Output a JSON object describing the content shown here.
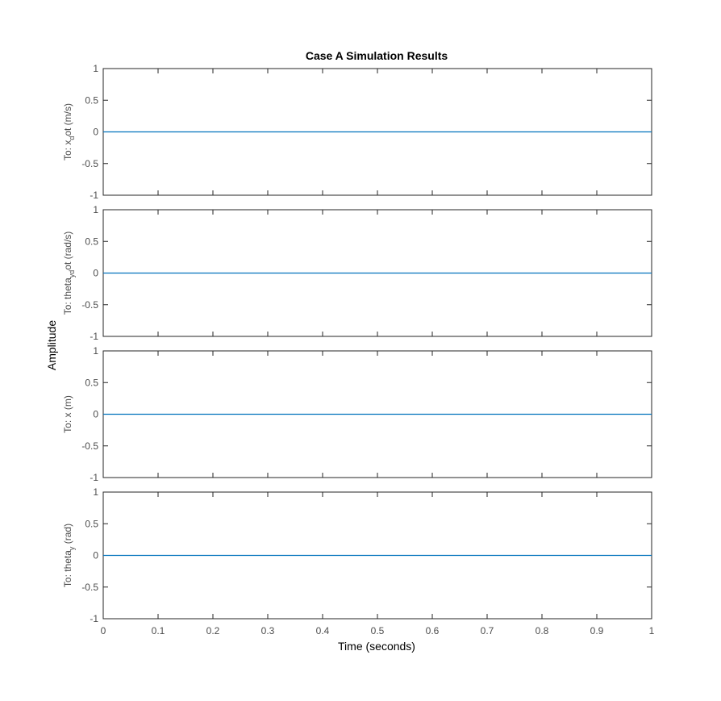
{
  "chart_data": {
    "type": "line",
    "title": "Case A Simulation Results",
    "xlabel": "Time (seconds)",
    "ylabel": "Amplitude",
    "xlim": [
      0,
      1
    ],
    "xticks": [
      0,
      0.1,
      0.2,
      0.3,
      0.4,
      0.5,
      0.6,
      0.7,
      0.8,
      0.9,
      1
    ],
    "xtick_labels": [
      "0",
      "0.1",
      "0.2",
      "0.3",
      "0.4",
      "0.5",
      "0.6",
      "0.7",
      "0.8",
      "0.9",
      "1"
    ],
    "grid": false,
    "line_color": "#0072BD",
    "subplots": [
      {
        "ylabel_main": "To: x",
        "ylabel_sub": "d",
        "ylabel_rest": "ot (m/s)",
        "ylim": [
          -1,
          1
        ],
        "yticks": [
          1,
          0.5,
          0,
          -0.5,
          -1
        ],
        "ytick_labels": [
          "1",
          "0.5",
          "0",
          "-0.5",
          "-1"
        ],
        "x": [
          0,
          1
        ],
        "y": [
          0,
          0
        ]
      },
      {
        "ylabel_main": "To: theta",
        "ylabel_sub": "yd",
        "ylabel_rest": "ot (rad/s)",
        "ylim": [
          -1,
          1
        ],
        "yticks": [
          1,
          0.5,
          0,
          -0.5,
          -1
        ],
        "ytick_labels": [
          "1",
          "0.5",
          "0",
          "-0.5",
          "-1"
        ],
        "x": [
          0,
          1
        ],
        "y": [
          0,
          0
        ]
      },
      {
        "ylabel_main": "To: x (m)",
        "ylabel_sub": "",
        "ylabel_rest": "",
        "ylim": [
          -1,
          1
        ],
        "yticks": [
          1,
          0.5,
          0,
          -0.5,
          -1
        ],
        "ytick_labels": [
          "1",
          "0.5",
          "0",
          "-0.5",
          "-1"
        ],
        "x": [
          0,
          1
        ],
        "y": [
          0,
          0
        ]
      },
      {
        "ylabel_main": "To: theta",
        "ylabel_sub": "y",
        "ylabel_rest": " (rad)",
        "ylim": [
          -1,
          1
        ],
        "yticks": [
          1,
          0.5,
          0,
          -0.5,
          -1
        ],
        "ytick_labels": [
          "1",
          "0.5",
          "0",
          "-0.5",
          "-1"
        ],
        "x": [
          0,
          1
        ],
        "y": [
          0,
          0
        ]
      }
    ]
  }
}
